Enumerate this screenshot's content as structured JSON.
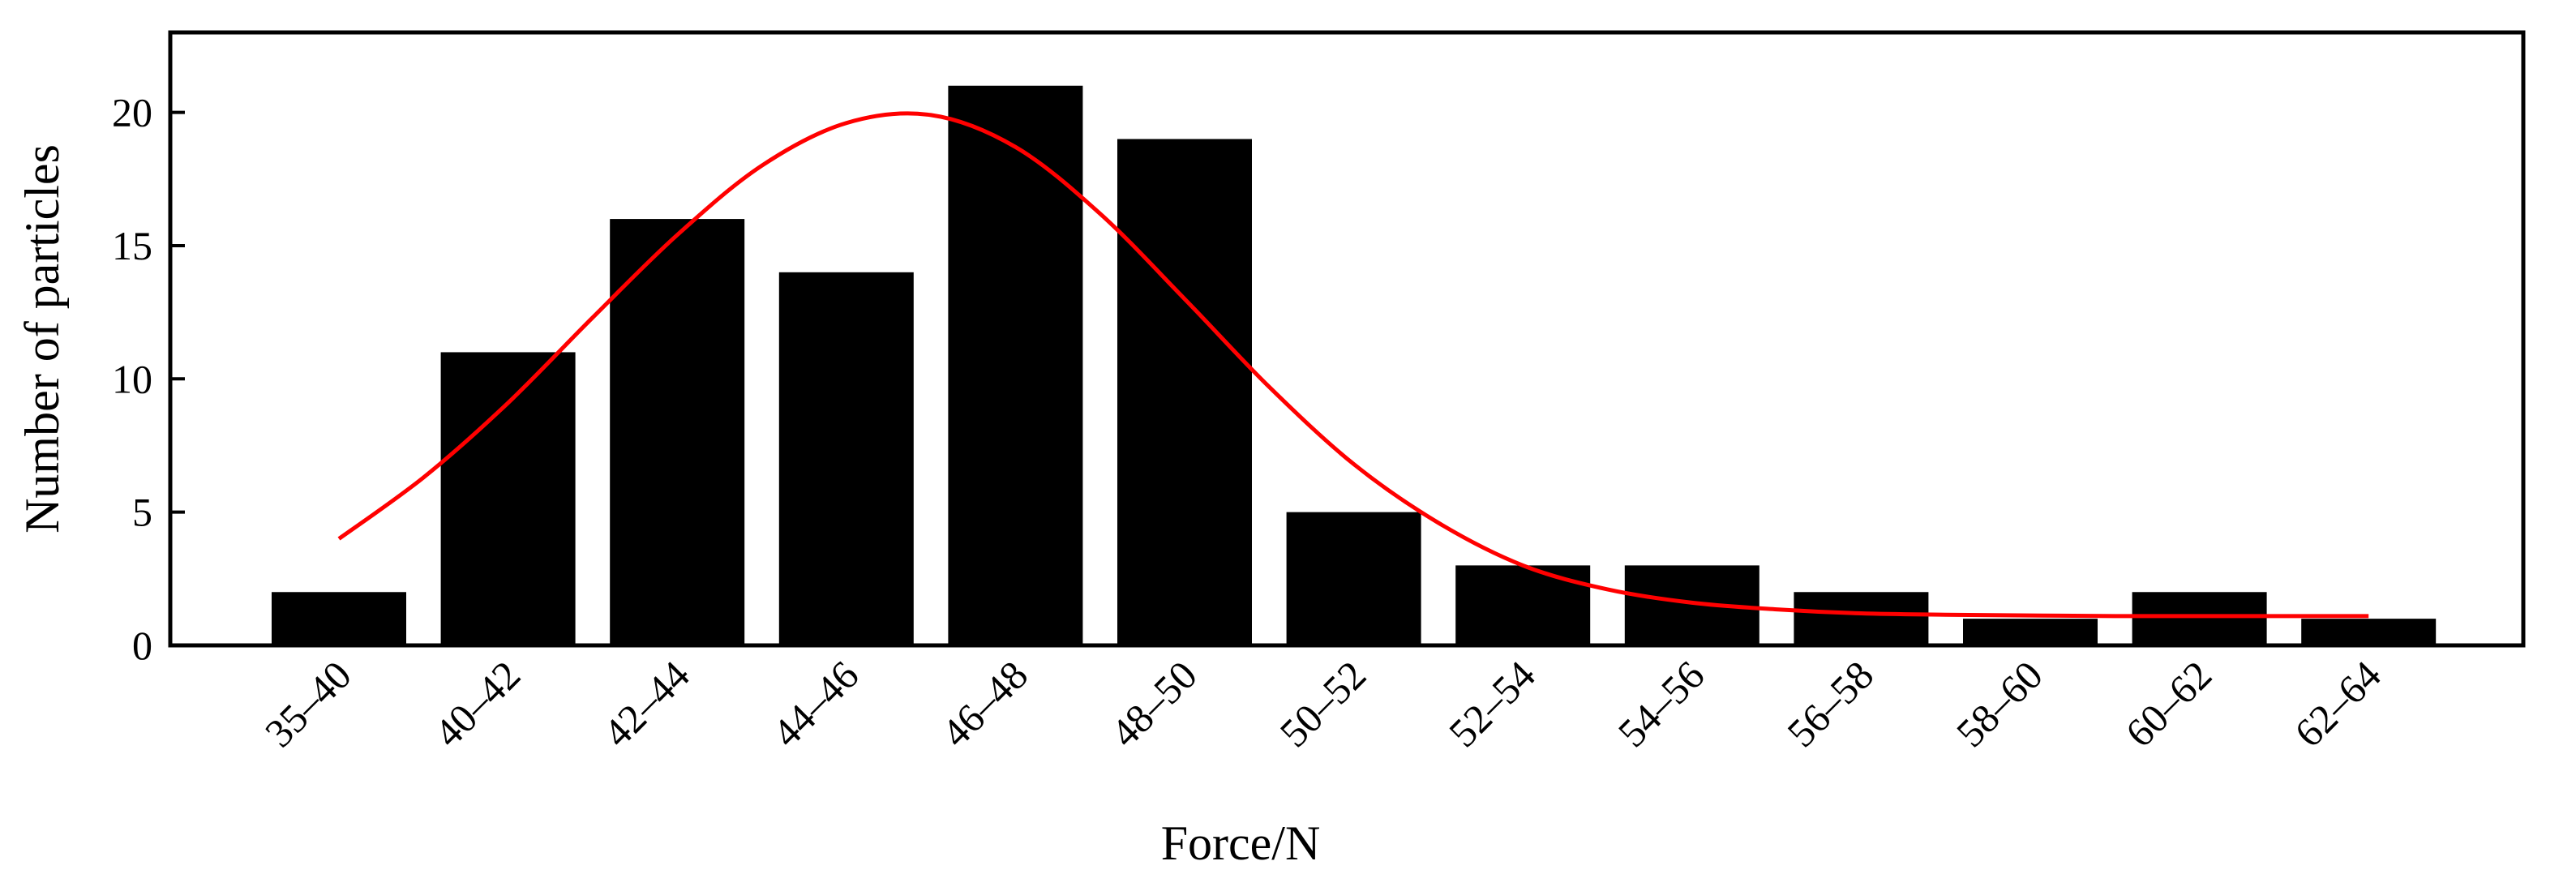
{
  "chart_data": {
    "type": "bar",
    "title": "",
    "xlabel": "Force/N",
    "ylabel": "Number of particles",
    "categories": [
      "35–40",
      "40–42",
      "42–44",
      "44–46",
      "46–48",
      "48–50",
      "50–52",
      "52–54",
      "54–56",
      "56–58",
      "58–60",
      "60–62",
      "62–64"
    ],
    "values": [
      2,
      11,
      16,
      14,
      21,
      19,
      5,
      3,
      3,
      2,
      1,
      2,
      1
    ],
    "ylim": [
      0,
      23
    ],
    "yticks": [
      0,
      5,
      10,
      15,
      20
    ],
    "bar_color": "#000000",
    "fit_curve": {
      "type": "line",
      "color": "#ff0000",
      "x_index": [
        0,
        0.5,
        1,
        1.5,
        2,
        2.5,
        3,
        3.5,
        4,
        4.5,
        5,
        5.5,
        6,
        6.5,
        7,
        7.5,
        8,
        8.5,
        9,
        9.5,
        10,
        10.5,
        11,
        11.5,
        12
      ],
      "values": [
        4.0,
        6.3,
        9.1,
        12.3,
        15.4,
        18.0,
        19.6,
        19.9,
        18.7,
        16.2,
        13.0,
        9.7,
        6.8,
        4.6,
        3.0,
        2.1,
        1.6,
        1.35,
        1.2,
        1.15,
        1.12,
        1.1,
        1.1,
        1.1,
        1.1
      ]
    },
    "grid": false,
    "legend": "none"
  }
}
